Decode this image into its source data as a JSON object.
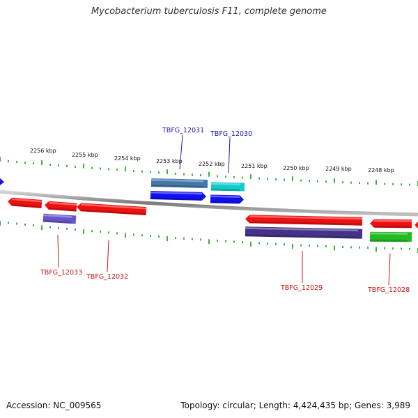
{
  "title": "Mycobacterium tuberculosis F11, complete genome",
  "footer": {
    "accession": "Accession: NC_009565",
    "summary": "Topology: circular; Length: 4,424,435 bp; Genes: 3,989"
  },
  "colors": {
    "backbone": "#888888",
    "tick": "#119911",
    "label_blue": "#1a1aaa",
    "label_red": "#cc1111",
    "feature_red": "#ee1111",
    "feature_blue": "#1111ee",
    "feature_steel": "#4477aa",
    "feature_cyan": "#11cccc",
    "feature_indigo": "#443388",
    "feature_lavender": "#6655cc",
    "feature_green": "#22bb22"
  },
  "scale_labels": [
    {
      "text": "2256 kbp"
    },
    {
      "text": "2255 kbp"
    },
    {
      "text": "2254 kbp"
    },
    {
      "text": "2253 kbp"
    },
    {
      "text": "2252 kbp"
    },
    {
      "text": "2251 kbp"
    },
    {
      "text": "2250 kbp"
    },
    {
      "text": "2249 kbp"
    },
    {
      "text": "2248 kbp"
    }
  ],
  "gene_labels": [
    {
      "text": "TBFG_12031",
      "color": "label_blue"
    },
    {
      "text": "TBFG_12030",
      "color": "label_blue"
    },
    {
      "text": "TBFG_12033",
      "color": "label_red"
    },
    {
      "text": "TBFG_12032",
      "color": "label_red"
    },
    {
      "text": "TBFG_12029",
      "color": "label_red"
    },
    {
      "text": "TBFG_12028",
      "color": "label_red"
    }
  ]
}
